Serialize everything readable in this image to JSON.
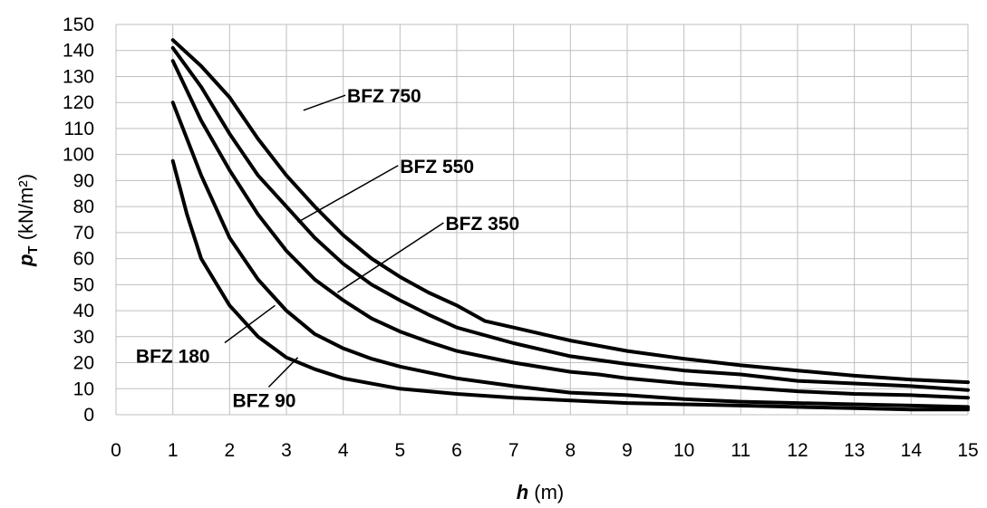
{
  "chart_data": {
    "type": "line",
    "xlabel": {
      "symbol": "h",
      "unit": " (m)"
    },
    "ylabel": {
      "symbol": "p",
      "subscript": "T",
      "unit": " (kN/m²)"
    },
    "xlim": [
      0,
      15
    ],
    "ylim": [
      0,
      150
    ],
    "x_ticks": [
      "0",
      "1",
      "2",
      "3",
      "4",
      "5",
      "6",
      "7",
      "8",
      "9",
      "10",
      "11",
      "12",
      "13",
      "14",
      "15"
    ],
    "y_ticks": [
      "0",
      "10",
      "20",
      "30",
      "40",
      "50",
      "60",
      "70",
      "80",
      "90",
      "100",
      "110",
      "120",
      "130",
      "140",
      "150"
    ],
    "grid": true,
    "series": [
      {
        "name": "BFZ 750",
        "x": [
          1,
          1.5,
          2,
          2.5,
          3,
          3.5,
          4,
          4.5,
          5,
          5.5,
          6,
          6.5,
          7,
          8,
          9,
          10,
          11,
          12,
          13,
          14,
          15
        ],
        "y": [
          144,
          134,
          122,
          106,
          92,
          80,
          69,
          60,
          53,
          47,
          42,
          36,
          33.5,
          28.5,
          24.5,
          21.5,
          19,
          17,
          15,
          13.5,
          12.5
        ],
        "label_at": [
          3.3,
          117
        ]
      },
      {
        "name": "BFZ 550",
        "x": [
          1,
          1.5,
          2,
          2.5,
          3,
          3.5,
          4,
          4.5,
          5,
          5.5,
          6,
          7,
          8,
          9,
          10,
          11,
          12,
          13,
          14,
          15
        ],
        "y": [
          141,
          126,
          108,
          92,
          80,
          68,
          58,
          50,
          44,
          38.5,
          33.5,
          27.5,
          22.5,
          19.5,
          17,
          15.5,
          13,
          12,
          11,
          9.5
        ],
        "label_at": [
          3.2,
          74
        ]
      },
      {
        "name": "BFZ 350",
        "x": [
          1,
          1.5,
          2,
          2.5,
          3,
          3.5,
          4,
          4.5,
          5,
          5.5,
          6,
          7,
          8,
          8.5,
          9,
          10,
          11,
          12,
          13,
          14,
          15
        ],
        "y": [
          136,
          113,
          94,
          77,
          63,
          52,
          44,
          37,
          32,
          28,
          24.5,
          20,
          16.5,
          15.5,
          14,
          12,
          10.5,
          9,
          8,
          7.5,
          6.5
        ],
        "label_at": [
          3.9,
          47
        ]
      },
      {
        "name": "BFZ 180",
        "x": [
          1,
          1.5,
          2,
          2.5,
          3,
          3.5,
          4,
          4.5,
          5,
          6,
          7,
          8,
          9,
          10,
          11,
          12,
          13,
          14,
          15
        ],
        "y": [
          120,
          92,
          68,
          52,
          40,
          31,
          25.5,
          21.5,
          18.5,
          14,
          11,
          8.5,
          7.5,
          6,
          5,
          4.5,
          4,
          3.5,
          3
        ],
        "label_at": [
          2.8,
          42
        ]
      },
      {
        "name": "BFZ 90",
        "x": [
          1,
          1.25,
          1.5,
          2,
          2.5,
          3,
          3.5,
          4,
          5,
          6,
          7,
          8,
          9,
          10,
          11,
          12,
          13,
          14,
          15
        ],
        "y": [
          97.5,
          77,
          60,
          42,
          30,
          22,
          17.5,
          14,
          10,
          8,
          6.5,
          5.5,
          4.5,
          4,
          3.5,
          3,
          2.5,
          2,
          2
        ],
        "label_at": [
          3.2,
          22
        ]
      }
    ],
    "annotations": [
      {
        "text": "BFZ 750",
        "series": "BFZ 750",
        "text_anchor": [
          4.07,
          120
        ]
      },
      {
        "text": "BFZ 550",
        "series": "BFZ 550",
        "text_anchor": [
          5.0,
          93
        ]
      },
      {
        "text": "BFZ 350",
        "series": "BFZ 350",
        "text_anchor": [
          5.8,
          71
        ]
      },
      {
        "text": "BFZ 180",
        "series": "BFZ 180",
        "text_anchor": [
          0.35,
          20
        ]
      },
      {
        "text": "BFZ 90",
        "series": "BFZ 90",
        "text_anchor": [
          2.05,
          3
        ]
      }
    ]
  }
}
